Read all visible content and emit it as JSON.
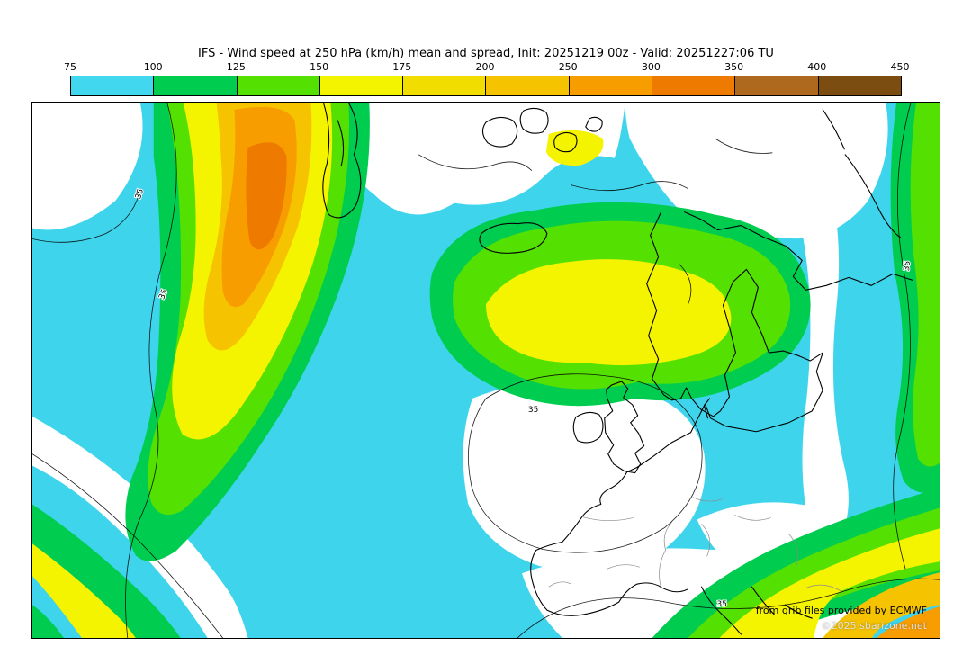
{
  "title": "IFS - Wind speed at 250 hPa (km/h) mean and spread, Init: 20251219 00z - Valid: 20251227:06 TU",
  "colorbar": {
    "ticks": [
      "75",
      "100",
      "125",
      "150",
      "175",
      "200",
      "250",
      "300",
      "350",
      "400",
      "450"
    ],
    "colors": [
      "#41d7ee",
      "#00cd50",
      "#54e000",
      "#f5f400",
      "#f2dd00",
      "#f5c300",
      "#f89d00",
      "#ee7a00",
      "#ae691e",
      "#7c4d11"
    ]
  },
  "map": {
    "fill_colors": {
      "calm": "#ffffff",
      "cyan": "#3ed5ec",
      "green": "#00cd50",
      "lime": "#54e000",
      "yellow": "#f5f400",
      "gold": "#f5c300",
      "orange": "#f89d00",
      "deep_orange": "#ee7a00"
    },
    "contour_labels": [
      "35",
      "35",
      "35",
      "35",
      "35"
    ]
  },
  "credits": {
    "line1": "from grib files provided by ECMWF",
    "line2": "©2025 sbarizone.net"
  }
}
